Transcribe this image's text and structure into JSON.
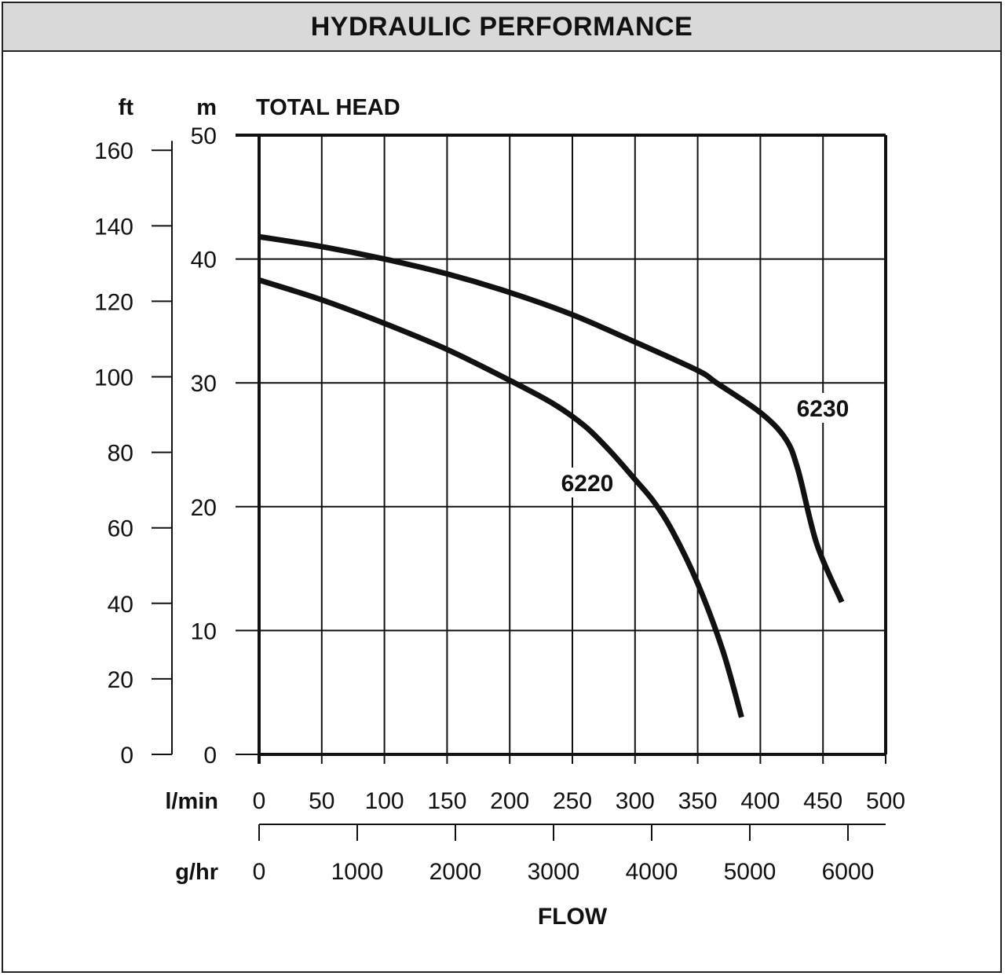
{
  "header": {
    "title": "HYDRAULIC PERFORMANCE"
  },
  "chart_data": {
    "type": "line",
    "title": "HYDRAULIC PERFORMANCE",
    "ylabel": "TOTAL HEAD",
    "xlabel": "FLOW",
    "y_primary": {
      "unit": "m",
      "ticks": [
        "0",
        "10",
        "20",
        "30",
        "40",
        "50"
      ],
      "range": [
        0,
        50
      ]
    },
    "y_secondary": {
      "unit": "ft",
      "ticks": [
        "0",
        "20",
        "40",
        "60",
        "80",
        "100",
        "120",
        "140",
        "160"
      ],
      "range": [
        0,
        164
      ]
    },
    "x_primary": {
      "unit": "l/min",
      "ticks": [
        "0",
        "50",
        "100",
        "150",
        "200",
        "250",
        "300",
        "350",
        "400",
        "450",
        "500"
      ],
      "range": [
        0,
        500
      ]
    },
    "x_secondary": {
      "unit": "g/hr",
      "ticks": [
        "0",
        "1000",
        "2000",
        "3000",
        "4000",
        "5000",
        "6000"
      ]
    },
    "grid": true,
    "series": [
      {
        "name": "6230",
        "x": [
          0,
          50,
          100,
          150,
          200,
          250,
          300,
          350,
          365,
          400,
          420,
          430,
          445,
          465
        ],
        "y": [
          41.8,
          41,
          40,
          38.8,
          37.3,
          35.5,
          33.3,
          31,
          30,
          27.6,
          25.5,
          23,
          17,
          12.3
        ]
      },
      {
        "name": "6220",
        "x": [
          0,
          50,
          100,
          150,
          200,
          235,
          260,
          280,
          300,
          315,
          330,
          350,
          370,
          385
        ],
        "y": [
          38.3,
          36.7,
          34.8,
          32.7,
          30.2,
          28.3,
          26.5,
          24.5,
          22.2,
          20.4,
          18,
          13.8,
          8.4,
          3
        ]
      }
    ]
  }
}
